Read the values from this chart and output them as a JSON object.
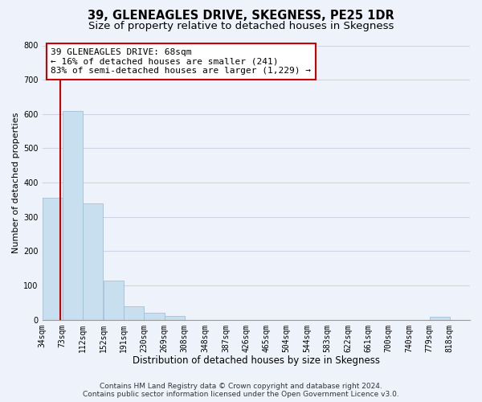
{
  "title": "39, GLENEAGLES DRIVE, SKEGNESS, PE25 1DR",
  "subtitle": "Size of property relative to detached houses in Skegness",
  "xlabel": "Distribution of detached houses by size in Skegness",
  "ylabel": "Number of detached properties",
  "bar_values": [
    355,
    610,
    340,
    115,
    40,
    20,
    12,
    0,
    0,
    0,
    0,
    0,
    0,
    0,
    0,
    0,
    0,
    0,
    0,
    8
  ],
  "bar_labels": [
    "34sqm",
    "73sqm",
    "112sqm",
    "152sqm",
    "191sqm",
    "230sqm",
    "269sqm",
    "308sqm",
    "348sqm",
    "387sqm",
    "426sqm",
    "465sqm",
    "504sqm",
    "544sqm",
    "583sqm",
    "622sqm",
    "661sqm",
    "700sqm",
    "740sqm",
    "779sqm",
    "818sqm"
  ],
  "bar_color": "#c8dff0",
  "bar_edge_color": "#a0c0d8",
  "property_line_x": 68,
  "property_line_color": "#cc0000",
  "ylim": [
    0,
    800
  ],
  "yticks": [
    0,
    100,
    200,
    300,
    400,
    500,
    600,
    700,
    800
  ],
  "grid_color": "#ccd5e8",
  "background_color": "#eef2fa",
  "annotation_text": "39 GLENEAGLES DRIVE: 68sqm\n← 16% of detached houses are smaller (241)\n83% of semi-detached houses are larger (1,229) →",
  "annotation_box_color": "#ffffff",
  "annotation_box_edge": "#cc0000",
  "footer_line1": "Contains HM Land Registry data © Crown copyright and database right 2024.",
  "footer_line2": "Contains public sector information licensed under the Open Government Licence v3.0.",
  "title_fontsize": 10.5,
  "subtitle_fontsize": 9.5,
  "xlabel_fontsize": 8.5,
  "ylabel_fontsize": 8,
  "tick_fontsize": 7,
  "annotation_fontsize": 8,
  "footer_fontsize": 6.5
}
